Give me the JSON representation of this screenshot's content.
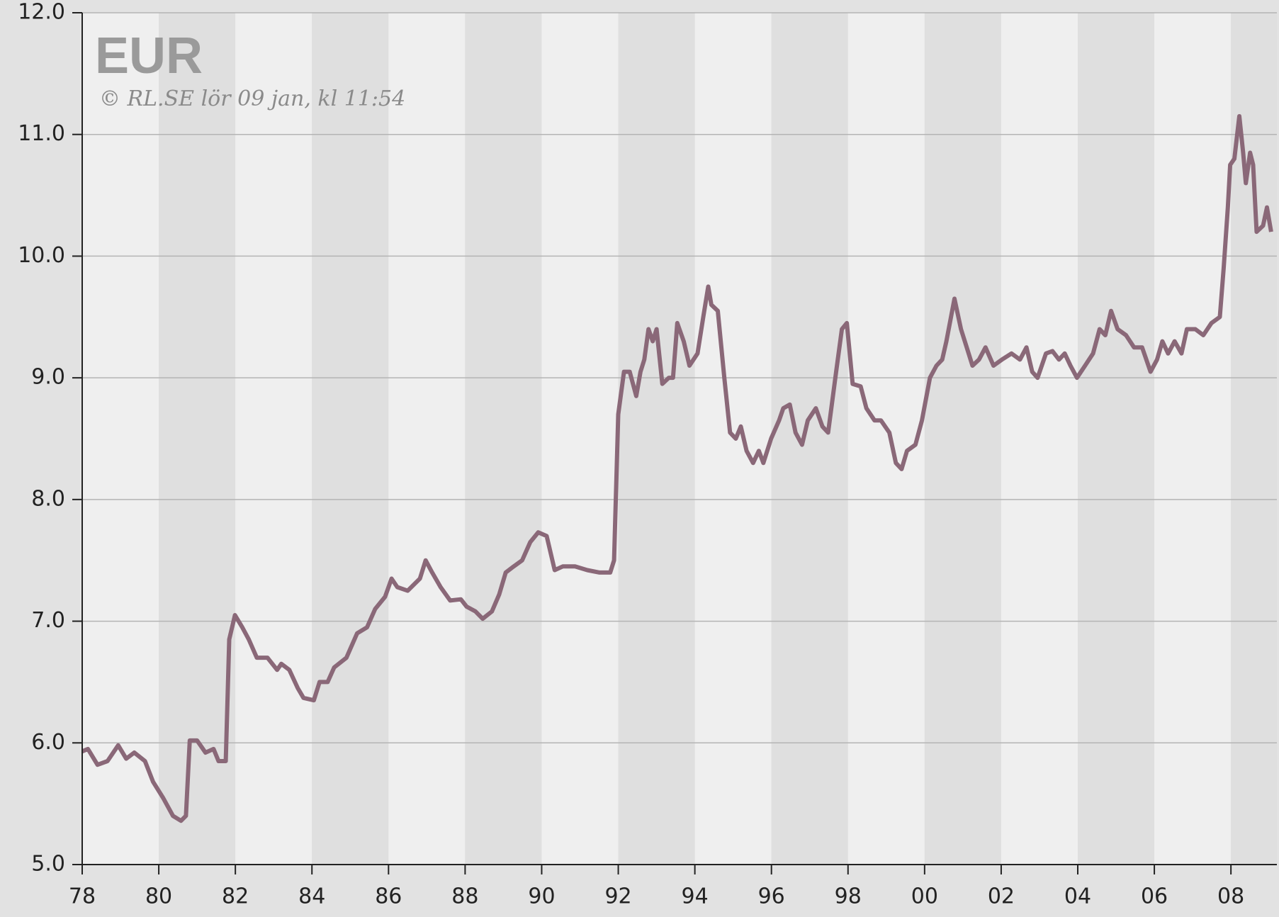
{
  "chart_data": {
    "type": "line",
    "title": "EUR",
    "subtitle": "© RL.SE lör 09 jan, kl 11:54",
    "x": [
      1978.0,
      1978.15,
      1978.4,
      1978.66,
      1978.94,
      1979.15,
      1979.36,
      1979.64,
      1979.85,
      1980.11,
      1980.37,
      1980.58,
      1980.71,
      1980.81,
      1981.0,
      1981.22,
      1981.43,
      1981.56,
      1981.75,
      1981.84,
      1981.99,
      1982.18,
      1982.35,
      1982.56,
      1982.84,
      1983.09,
      1983.2,
      1983.41,
      1983.63,
      1983.78,
      1984.05,
      1984.2,
      1984.41,
      1984.58,
      1984.9,
      1985.18,
      1985.44,
      1985.65,
      1985.91,
      1986.08,
      1986.23,
      1986.5,
      1986.82,
      1986.97,
      1987.14,
      1987.36,
      1987.61,
      1987.89,
      1988.04,
      1988.27,
      1988.46,
      1988.7,
      1988.89,
      1989.06,
      1989.27,
      1989.49,
      1989.7,
      1989.91,
      1990.13,
      1990.34,
      1990.55,
      1990.87,
      1991.19,
      1991.51,
      1991.79,
      1991.89,
      1992.0,
      1992.15,
      1992.3,
      1992.47,
      1992.58,
      1992.68,
      1992.79,
      1992.9,
      1993.0,
      1993.15,
      1993.32,
      1993.43,
      1993.54,
      1993.71,
      1993.86,
      1994.07,
      1994.22,
      1994.35,
      1994.43,
      1994.6,
      1994.77,
      1994.92,
      1995.07,
      1995.2,
      1995.35,
      1995.52,
      1995.67,
      1995.79,
      1995.99,
      1996.2,
      1996.31,
      1996.48,
      1996.63,
      1996.8,
      1996.95,
      1997.16,
      1997.33,
      1997.48,
      1997.69,
      1997.84,
      1997.97,
      1998.12,
      1998.33,
      1998.48,
      1998.69,
      1998.86,
      1999.08,
      1999.25,
      1999.4,
      1999.54,
      1999.76,
      1999.93,
      2000.14,
      2000.31,
      2000.46,
      2000.57,
      2000.78,
      2000.95,
      2001.1,
      2001.25,
      2001.42,
      2001.59,
      2001.8,
      2002.02,
      2002.27,
      2002.49,
      2002.66,
      2002.81,
      2002.95,
      2003.17,
      2003.34,
      2003.51,
      2003.66,
      2003.81,
      2003.98,
      2004.19,
      2004.4,
      2004.57,
      2004.72,
      2004.87,
      2005.04,
      2005.26,
      2005.47,
      2005.68,
      2005.9,
      2006.07,
      2006.21,
      2006.36,
      2006.53,
      2006.71,
      2006.85,
      2007.07,
      2007.28,
      2007.49,
      2007.71,
      2007.81,
      2007.92,
      2007.98,
      2008.09,
      2008.22,
      2008.32,
      2008.39,
      2008.5,
      2008.58,
      2008.67,
      2008.84,
      2008.94,
      2009.05
    ],
    "series": [
      {
        "name": "EUR",
        "color": "#8a6878",
        "values": [
          5.93,
          5.95,
          5.82,
          5.85,
          5.98,
          5.87,
          5.92,
          5.85,
          5.68,
          5.55,
          5.4,
          5.36,
          5.4,
          6.02,
          6.02,
          5.92,
          5.95,
          5.85,
          5.85,
          6.85,
          7.05,
          6.95,
          6.85,
          6.7,
          6.7,
          6.6,
          6.65,
          6.6,
          6.45,
          6.37,
          6.35,
          6.5,
          6.5,
          6.62,
          6.7,
          6.9,
          6.95,
          7.1,
          7.2,
          7.35,
          7.28,
          7.25,
          7.35,
          7.5,
          7.4,
          7.28,
          7.17,
          7.18,
          7.12,
          7.08,
          7.02,
          7.08,
          7.22,
          7.4,
          7.45,
          7.5,
          7.65,
          7.73,
          7.7,
          7.42,
          7.45,
          7.45,
          7.42,
          7.4,
          7.4,
          7.5,
          8.7,
          9.05,
          9.05,
          8.85,
          9.05,
          9.15,
          9.4,
          9.3,
          9.4,
          8.95,
          9.0,
          9.0,
          9.45,
          9.3,
          9.1,
          9.2,
          9.5,
          9.75,
          9.6,
          9.55,
          9.0,
          8.55,
          8.5,
          8.6,
          8.4,
          8.3,
          8.4,
          8.3,
          8.5,
          8.65,
          8.75,
          8.78,
          8.55,
          8.45,
          8.65,
          8.75,
          8.6,
          8.55,
          9.05,
          9.4,
          9.45,
          8.95,
          8.93,
          8.75,
          8.65,
          8.65,
          8.55,
          8.3,
          8.25,
          8.4,
          8.45,
          8.65,
          9.0,
          9.1,
          9.15,
          9.3,
          9.65,
          9.4,
          9.25,
          9.1,
          9.15,
          9.25,
          9.1,
          9.15,
          9.2,
          9.15,
          9.25,
          9.05,
          9.0,
          9.2,
          9.22,
          9.15,
          9.2,
          9.1,
          9.0,
          9.1,
          9.2,
          9.4,
          9.35,
          9.55,
          9.4,
          9.35,
          9.25,
          9.25,
          9.05,
          9.15,
          9.3,
          9.2,
          9.3,
          9.2,
          9.4,
          9.4,
          9.35,
          9.45,
          9.5,
          9.9,
          10.4,
          10.75,
          10.8,
          11.15,
          10.85,
          10.6,
          10.85,
          10.75,
          10.2,
          10.25,
          10.4,
          10.2
        ]
      }
    ],
    "xlim": [
      1978,
      2009.2
    ],
    "xticks": [
      {
        "value": 1978,
        "label": "78"
      },
      {
        "value": 1980,
        "label": "80"
      },
      {
        "value": 1982,
        "label": "82"
      },
      {
        "value": 1984,
        "label": "84"
      },
      {
        "value": 1986,
        "label": "86"
      },
      {
        "value": 1988,
        "label": "88"
      },
      {
        "value": 1990,
        "label": "90"
      },
      {
        "value": 1992,
        "label": "92"
      },
      {
        "value": 1994,
        "label": "94"
      },
      {
        "value": 1996,
        "label": "96"
      },
      {
        "value": 1998,
        "label": "98"
      },
      {
        "value": 2000,
        "label": "00"
      },
      {
        "value": 2002,
        "label": "02"
      },
      {
        "value": 2004,
        "label": "04"
      },
      {
        "value": 2006,
        "label": "06"
      },
      {
        "value": 2008,
        "label": "08"
      }
    ],
    "ylim": [
      5,
      12
    ],
    "yticks": [
      {
        "value": 5,
        "label": "5.0"
      },
      {
        "value": 6,
        "label": "6.0"
      },
      {
        "value": 7,
        "label": "7.0"
      },
      {
        "value": 8,
        "label": "8.0"
      },
      {
        "value": 9,
        "label": "9.0"
      },
      {
        "value": 10,
        "label": "10.0"
      },
      {
        "value": 11,
        "label": "11.0"
      },
      {
        "value": 12,
        "label": "12.0"
      }
    ],
    "grid": true,
    "band_colors": [
      "#efefef",
      "#dfdfdf"
    ]
  }
}
